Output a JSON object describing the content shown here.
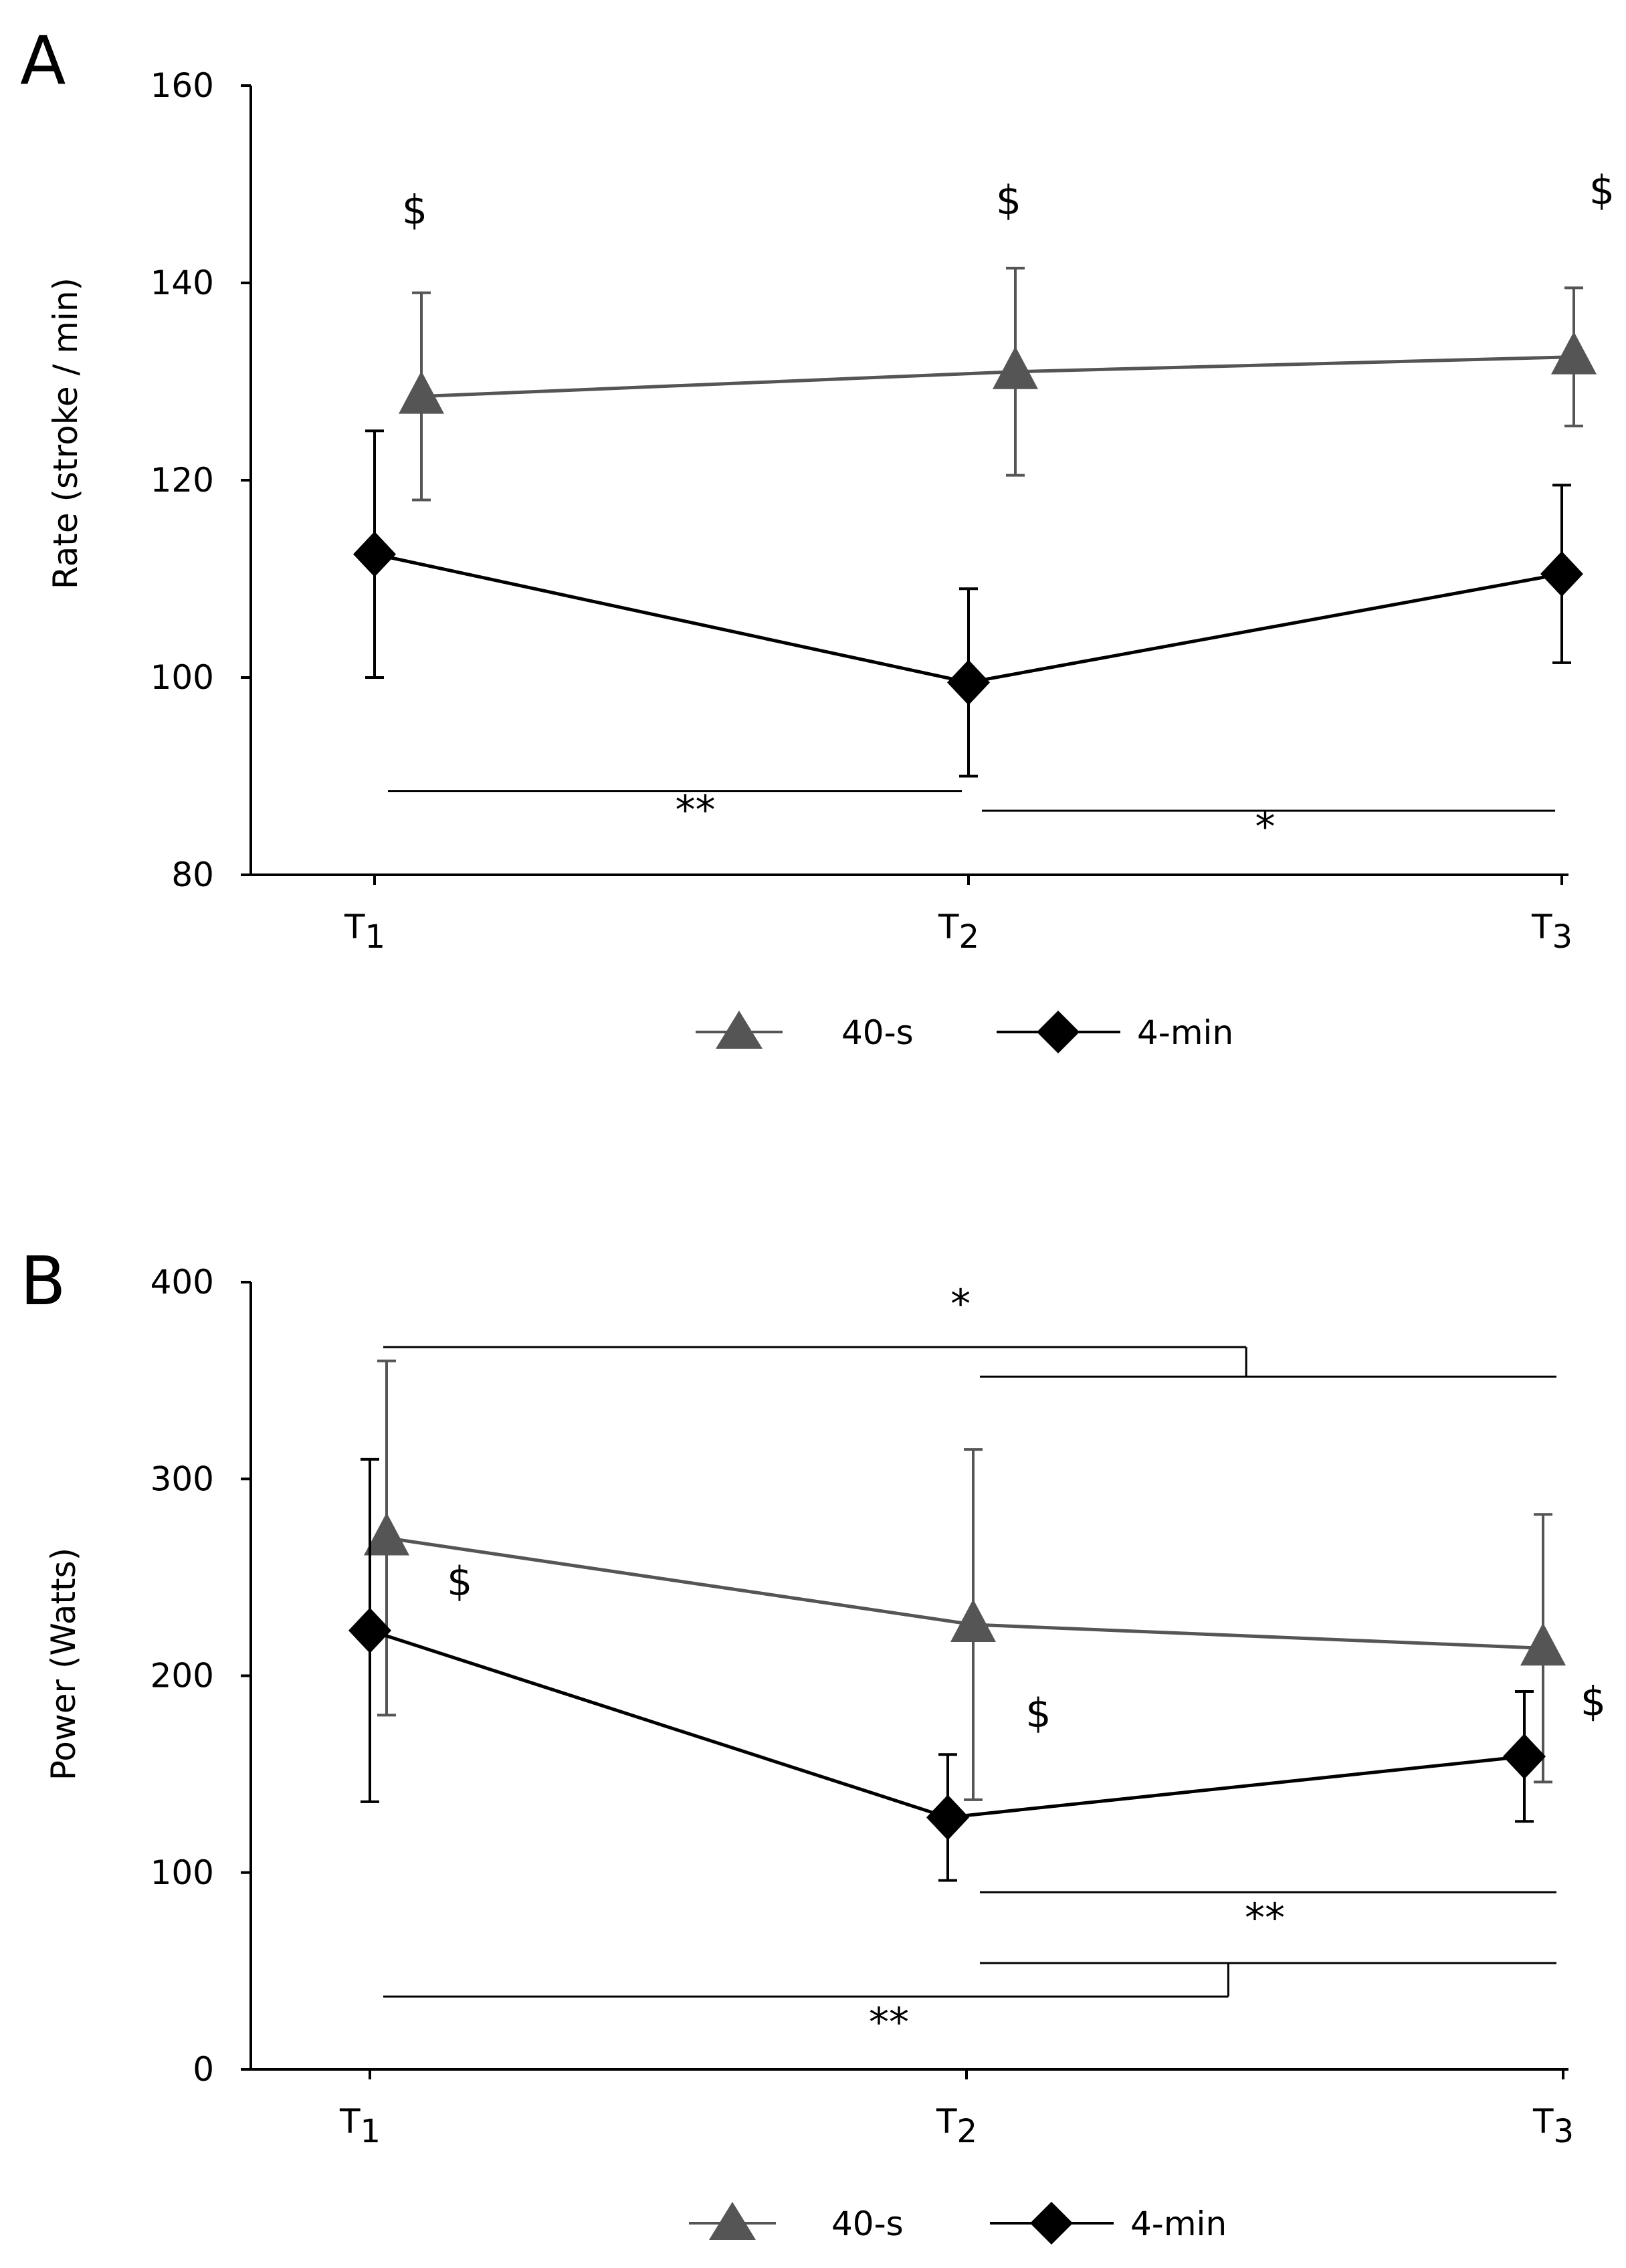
{
  "panels": [
    {
      "label": "A",
      "chart_data": {
        "type": "line",
        "ylabel": "Rate (stroke / min)",
        "ylim": [
          80,
          160
        ],
        "yticks": [
          "80",
          "100",
          "120",
          "140",
          "160"
        ],
        "categories": [
          {
            "main": "T",
            "sub": "1"
          },
          {
            "main": "T",
            "sub": "2"
          },
          {
            "main": "T",
            "sub": "3"
          }
        ],
        "grid": false,
        "legend": "bottom",
        "series": [
          {
            "name": "40-s",
            "marker": "triangle",
            "color": "#555555",
            "values": [
              128.5,
              131,
              132.5
            ],
            "err": [
              10.5,
              10.5,
              7
            ]
          },
          {
            "name": "4-min",
            "marker": "diamond",
            "color": "#000000",
            "values": [
              112.5,
              99.5,
              110.5
            ],
            "err": [
              12.5,
              9.5,
              9
            ]
          }
        ],
        "symbols": [
          {
            "text": "$",
            "x": 0,
            "y": 146
          },
          {
            "text": "$",
            "x": 1,
            "y": 147
          },
          {
            "text": "$",
            "x": 2,
            "y": 148
          }
        ],
        "brackets": [
          {
            "x1": 0,
            "x2": 1,
            "y": 88.5,
            "text": "**",
            "text_x": 0.54,
            "text_y": 85.2
          },
          {
            "x1": 1,
            "x2": 2,
            "y": 86.5,
            "text": "*",
            "text_x": 1.5,
            "text_y": 83.5
          }
        ]
      }
    },
    {
      "label": "B",
      "chart_data": {
        "type": "line",
        "ylabel": "Power (Watts)",
        "ylim": [
          0,
          400
        ],
        "yticks": [
          "0",
          "100",
          "200",
          "300",
          "400"
        ],
        "categories": [
          {
            "main": "T",
            "sub": "1"
          },
          {
            "main": "T",
            "sub": "2"
          },
          {
            "main": "T",
            "sub": "3"
          }
        ],
        "grid": false,
        "legend": "bottom",
        "series": [
          {
            "name": "40-s",
            "marker": "triangle",
            "color": "#555555",
            "values": [
              270,
              226,
              214
            ],
            "err": [
              90,
              89,
              68
            ]
          },
          {
            "name": "4-min",
            "marker": "diamond",
            "color": "#000000",
            "values": [
              223,
              128,
              159
            ],
            "err": [
              87,
              32,
              33
            ]
          }
        ],
        "symbols": [
          {
            "text": "$",
            "x": 0.1,
            "y": 241
          },
          {
            "text": "$",
            "x": 1.07,
            "y": 174
          },
          {
            "text": "$",
            "x": 2.06,
            "y": 180
          }
        ],
        "brackets": [
          {
            "x1": 0,
            "x2": 1.48,
            "y": 367,
            "text": "*",
            "text_x": 0.99,
            "text_y": 382
          },
          {
            "x1": 1,
            "x2": 2,
            "y": 352
          },
          {
            "x1": 1,
            "x2": 2,
            "y": 90,
            "text": "**",
            "text_x": 1.5,
            "text_y": 70
          },
          {
            "x1": 1,
            "x2": 2,
            "y": 54
          },
          {
            "x1": 0,
            "x2": 1.45,
            "y": 37,
            "text": "**",
            "text_x": 0.87,
            "text_y": 17
          }
        ]
      }
    }
  ]
}
